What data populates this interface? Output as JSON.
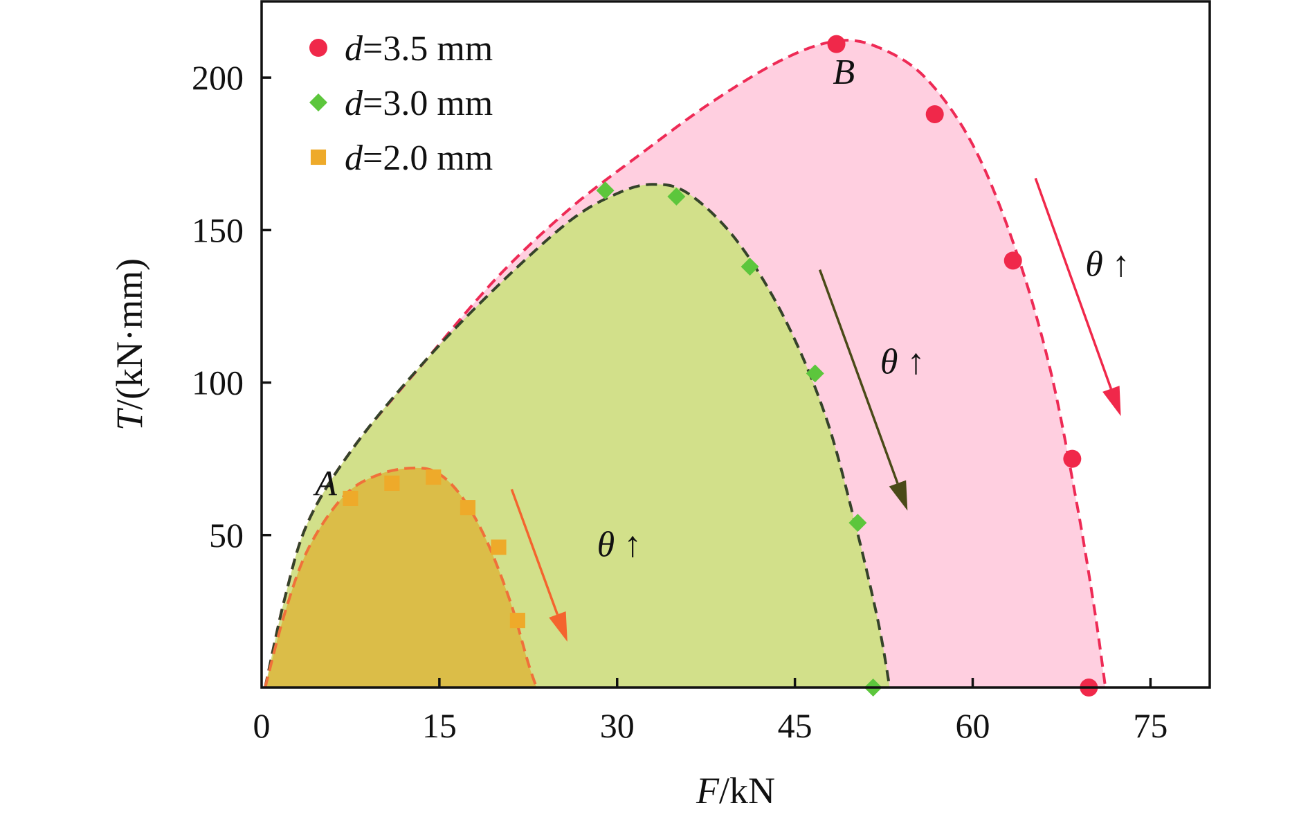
{
  "chart_data": {
    "type": "area",
    "xlabel": {
      "var": "F",
      "unit": "/kN"
    },
    "ylabel": {
      "var": "T",
      "unit": "/(kN·mm)"
    },
    "xlim": [
      0,
      80
    ],
    "ylim": [
      0,
      225
    ],
    "xticks": [
      0,
      15,
      30,
      45,
      60,
      75
    ],
    "yticks": [
      50,
      100,
      150,
      200
    ],
    "xtick_labels": [
      "0",
      "15",
      "30",
      "45",
      "60",
      "75"
    ],
    "ytick_labels": [
      "50",
      "100",
      "150",
      "200"
    ],
    "grid": false,
    "legend_position": "top-left",
    "series": [
      {
        "name": "d=3.5 mm",
        "legend_var": "d",
        "legend_rest": "=3.5 mm",
        "marker": "circle",
        "color": "#f0284a",
        "fill": "#ffcfe0",
        "points": [
          [
            48.5,
            211
          ],
          [
            56.8,
            188
          ],
          [
            63.4,
            140
          ],
          [
            68.4,
            75
          ],
          [
            69.8,
            0
          ]
        ],
        "curve": [
          [
            0.3,
            0
          ],
          [
            2,
            30
          ],
          [
            4,
            55
          ],
          [
            8,
            80
          ],
          [
            14,
            108
          ],
          [
            20,
            135
          ],
          [
            26,
            157
          ],
          [
            32,
            175
          ],
          [
            38,
            192
          ],
          [
            44,
            206
          ],
          [
            48.5,
            212
          ],
          [
            52,
            210
          ],
          [
            56,
            200
          ],
          [
            60,
            178
          ],
          [
            63.5,
            145
          ],
          [
            66.5,
            105
          ],
          [
            68.8,
            60
          ],
          [
            70.3,
            25
          ],
          [
            71.2,
            0
          ]
        ]
      },
      {
        "name": "d=3.0 mm",
        "legend_var": "d",
        "legend_rest": "=3.0 mm",
        "marker": "diamond",
        "color": "#5cc63c",
        "fill": "#d2e08a",
        "points": [
          [
            29,
            163
          ],
          [
            35,
            161
          ],
          [
            41.2,
            138
          ],
          [
            46.7,
            103
          ],
          [
            50.3,
            54
          ],
          [
            51.6,
            0
          ]
        ],
        "curve": [
          [
            0.3,
            0
          ],
          [
            2,
            30
          ],
          [
            4,
            55
          ],
          [
            8,
            80
          ],
          [
            14,
            108
          ],
          [
            20,
            132
          ],
          [
            26,
            153
          ],
          [
            30,
            162
          ],
          [
            33,
            165
          ],
          [
            36,
            162
          ],
          [
            40,
            147
          ],
          [
            44,
            122
          ],
          [
            47.5,
            90
          ],
          [
            50,
            55
          ],
          [
            52,
            22
          ],
          [
            53,
            0
          ]
        ]
      },
      {
        "name": "d=2.0 mm",
        "legend_var": "d",
        "legend_rest": "=2.0 mm",
        "marker": "square",
        "color": "#eeaa2a",
        "fill": "#dbbd48",
        "points": [
          [
            7.5,
            62
          ],
          [
            11,
            67
          ],
          [
            14.5,
            69
          ],
          [
            17.4,
            59
          ],
          [
            20,
            46
          ],
          [
            21.6,
            22
          ]
        ],
        "curve": [
          [
            0.3,
            0
          ],
          [
            2,
            25
          ],
          [
            4,
            46
          ],
          [
            7,
            63
          ],
          [
            10,
            70
          ],
          [
            13,
            72
          ],
          [
            15,
            70
          ],
          [
            17,
            62
          ],
          [
            19,
            48
          ],
          [
            21,
            28
          ],
          [
            22.5,
            8
          ],
          [
            23.2,
            0
          ]
        ]
      }
    ],
    "annotations": [
      {
        "text": "A",
        "italic": true,
        "x": 4.5,
        "y": 63
      },
      {
        "text": "B",
        "italic": true,
        "x": 48.2,
        "y": 198
      },
      {
        "text": "θ ↑",
        "x": 28.3,
        "y": 43,
        "arrow_from": [
          21.1,
          65
        ],
        "arrow_to": [
          25.8,
          15
        ],
        "arrow_color": "#f4642e"
      },
      {
        "text": "θ ↑",
        "x": 52.2,
        "y": 103,
        "arrow_from": [
          47.1,
          137
        ],
        "arrow_to": [
          54.5,
          58
        ],
        "arrow_color": "#4a4a18"
      },
      {
        "text": "θ ↑",
        "x": 69.5,
        "y": 135,
        "arrow_from": [
          65.3,
          167
        ],
        "arrow_to": [
          72.5,
          89
        ],
        "arrow_color": "#f0284a"
      }
    ]
  }
}
